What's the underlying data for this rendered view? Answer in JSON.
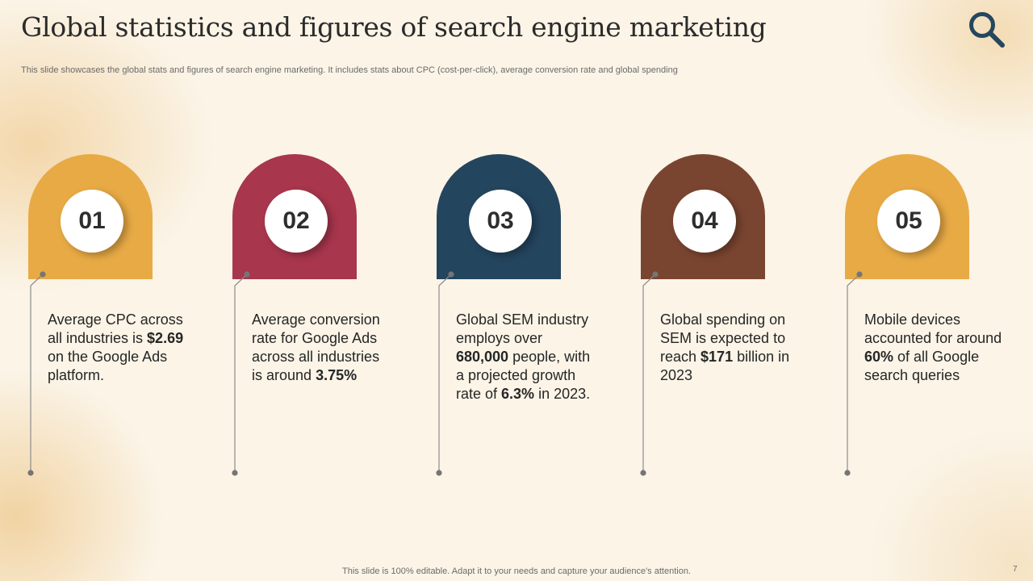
{
  "slide": {
    "title": "Global statistics and figures of search engine marketing",
    "subtitle": "This slide showcases the global stats and figures of search engine marketing. It includes stats about CPC (cost-per-click), average conversion rate and global spending",
    "footer": "This slide is 100% editable. Adapt it to your needs and capture your audience's attention.",
    "page_number": "7",
    "icon": "search-icon",
    "icon_color": "#24475e"
  },
  "cards": [
    {
      "number": "01",
      "color": "#e8aa45",
      "parts": [
        {
          "text": "Average CPC across all industries is ",
          "bold": false
        },
        {
          "text": "$2.69",
          "bold": true
        },
        {
          "text": " on the Google Ads platform.",
          "bold": false
        }
      ]
    },
    {
      "number": "02",
      "color": "#a8364c",
      "parts": [
        {
          "text": "Average conversion rate for Google Ads across all industries is around ",
          "bold": false
        },
        {
          "text": "3.75%",
          "bold": true
        }
      ]
    },
    {
      "number": "03",
      "color": "#24455e",
      "parts": [
        {
          "text": "Global SEM industry employs over ",
          "bold": false
        },
        {
          "text": "680,000",
          "bold": true
        },
        {
          "text": " people, with a projected growth rate of ",
          "bold": false
        },
        {
          "text": "6.3%",
          "bold": true
        },
        {
          "text": " in 2023.",
          "bold": false
        }
      ]
    },
    {
      "number": "04",
      "color": "#7a4530",
      "parts": [
        {
          "text": "Global spending on SEM is expected to reach ",
          "bold": false
        },
        {
          "text": "$171",
          "bold": true
        },
        {
          "text": " billion in 2023",
          "bold": false
        }
      ]
    },
    {
      "number": "05",
      "color": "#e8aa45",
      "parts": [
        {
          "text": "Mobile devices accounted for around ",
          "bold": false
        },
        {
          "text": "60%",
          "bold": true
        },
        {
          "text": " of all Google search queries",
          "bold": false
        }
      ]
    }
  ]
}
